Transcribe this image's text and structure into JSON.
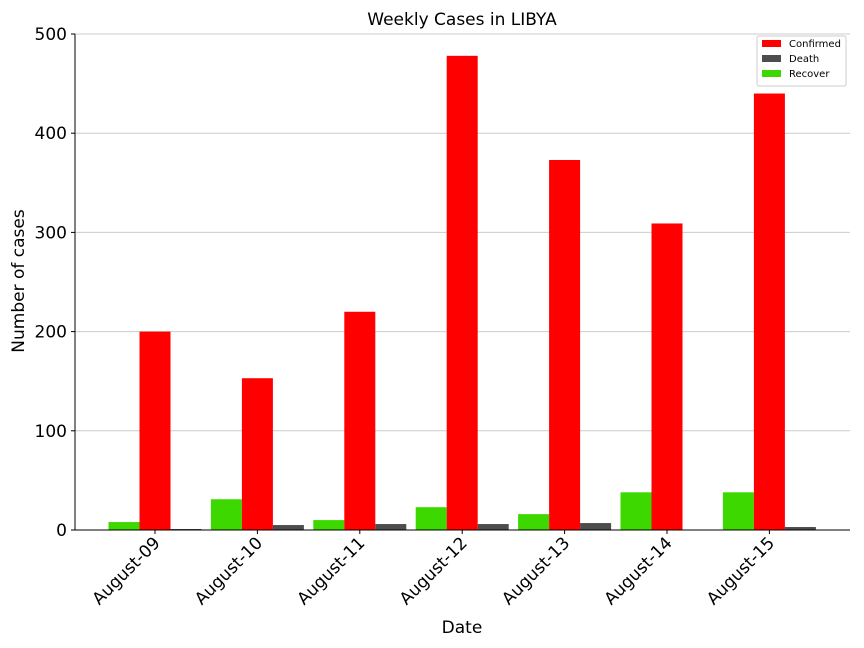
{
  "chart_data": {
    "type": "bar",
    "title": "Weekly Cases in LIBYA",
    "xlabel": "Date",
    "ylabel": "Number of cases",
    "ylim": [
      0,
      500
    ],
    "yticks": [
      0,
      100,
      200,
      300,
      400,
      500
    ],
    "grid": "horizontal",
    "legend_position": "top-right",
    "categories": [
      "August-09",
      "August-10",
      "August-11",
      "August-12",
      "August-13",
      "August-14",
      "August-15"
    ],
    "series": [
      {
        "name": "Recover",
        "color": "#3dd800",
        "values": [
          8,
          31,
          10,
          23,
          16,
          38,
          38
        ]
      },
      {
        "name": "Confirmed",
        "color": "#ff0000",
        "values": [
          200,
          153,
          220,
          478,
          373,
          309,
          440
        ]
      },
      {
        "name": "Death",
        "color": "#4d4d4d",
        "values": [
          1,
          5,
          6,
          6,
          7,
          0,
          3
        ]
      }
    ],
    "legend_order": [
      "Confirmed",
      "Death",
      "Recover"
    ]
  }
}
